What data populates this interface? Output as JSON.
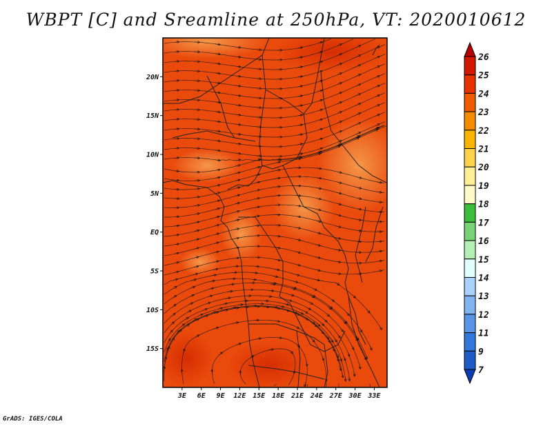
{
  "title": "WBPT [C] and Sreamline at 250hPa, VT: 2020010612",
  "footer": "GrADS: IGES/COLA",
  "map": {
    "lon_range": [
      0,
      35
    ],
    "lat_range": [
      -20,
      25
    ],
    "lon_ticks": [
      "3E",
      "6E",
      "9E",
      "12E",
      "15E",
      "18E",
      "21E",
      "24E",
      "27E",
      "30E",
      "33E"
    ],
    "lat_ticks": [
      "20N",
      "15N",
      "10N",
      "5N",
      "EQ",
      "5S",
      "10S",
      "15S"
    ]
  },
  "colorbar": {
    "labels": [
      "26",
      "25",
      "24",
      "23",
      "22",
      "21",
      "20",
      "19",
      "18",
      "17",
      "16",
      "15",
      "14",
      "13",
      "12",
      "11",
      "9",
      "7"
    ],
    "colors": [
      "#b40000",
      "#d21900",
      "#e63200",
      "#f05a00",
      "#f58c00",
      "#fab400",
      "#ffd24b",
      "#fff096",
      "#fffac8",
      "#3cbe3c",
      "#78d278",
      "#b4f0b4",
      "#e1ffff",
      "#aad2ff",
      "#82b4f0",
      "#5a96e6",
      "#3278dc",
      "#1e5ac8",
      "#0a3cb4"
    ]
  }
}
